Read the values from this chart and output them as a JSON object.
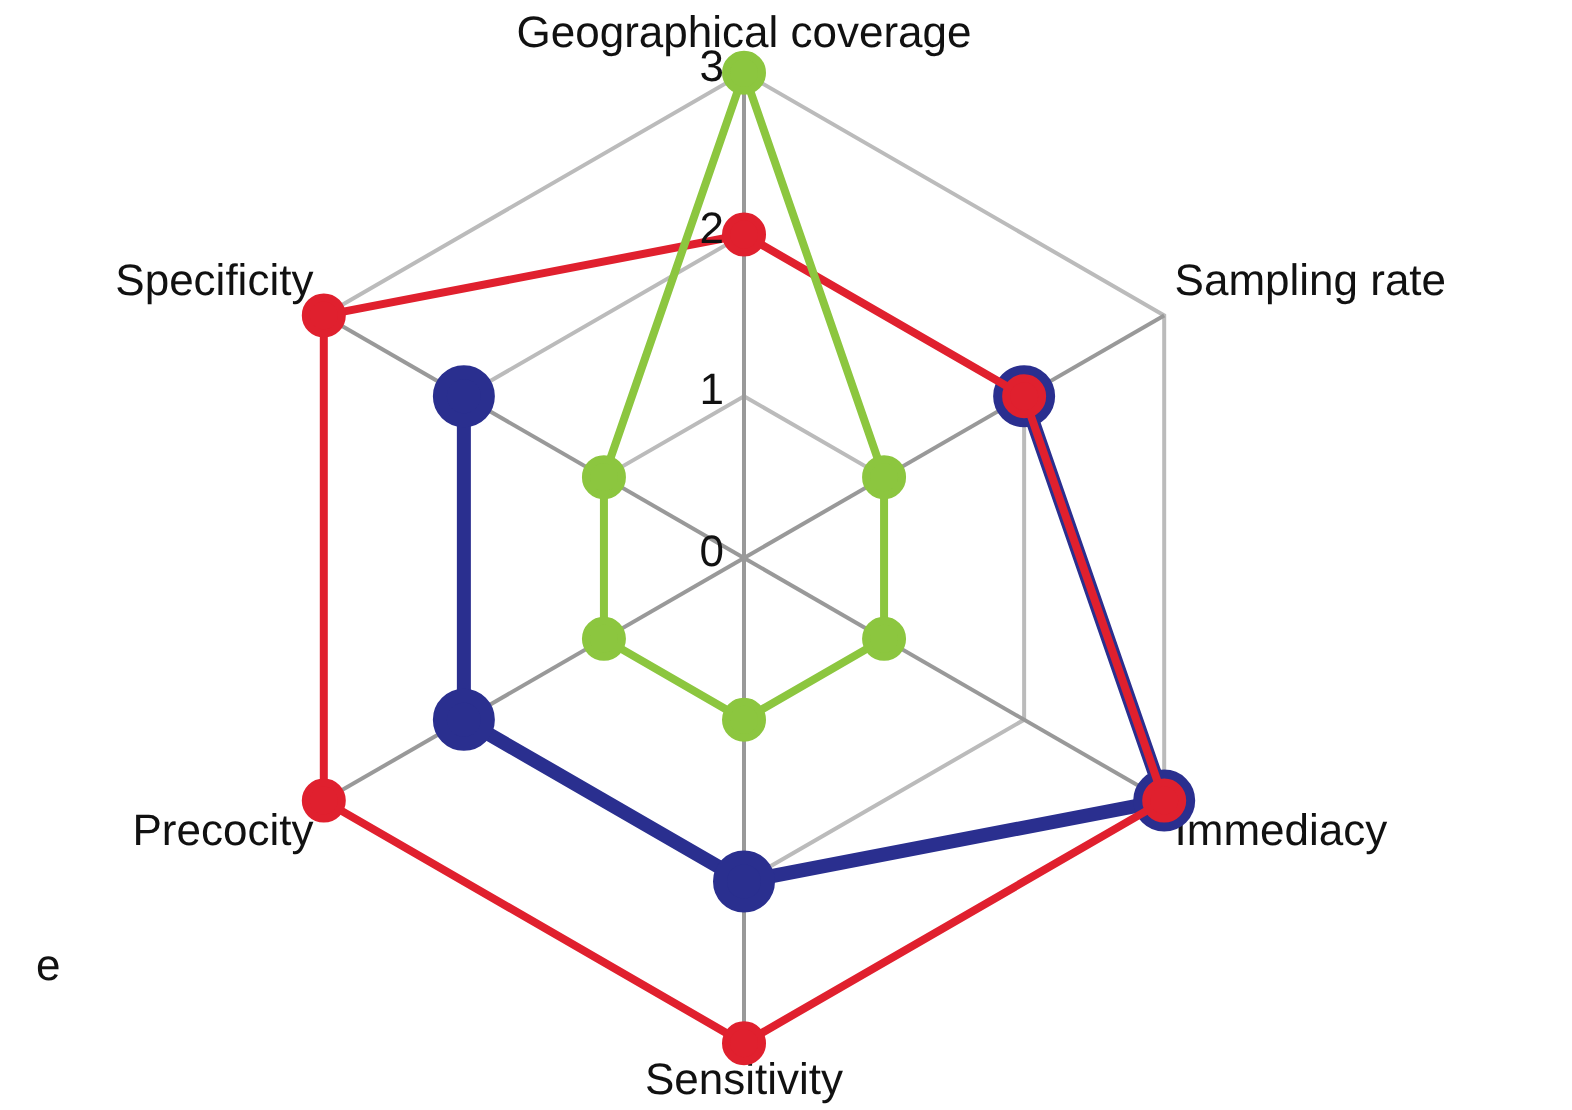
{
  "chart_data": {
    "type": "radar",
    "categories": [
      "Geographical coverage",
      "Sampling rate",
      "Immediacy",
      "Sensitivity",
      "Precocity",
      "Specificity"
    ],
    "series": [
      {
        "color": "#e0202e",
        "values": [
          2,
          2,
          3,
          3,
          3,
          3
        ]
      },
      {
        "color": "#2a2f8f",
        "values": [
          null,
          2,
          3,
          2,
          2,
          2
        ]
      },
      {
        "color": "#8cc63f",
        "values": [
          3,
          1,
          1,
          1,
          1,
          1
        ]
      }
    ],
    "ylim": [
      0,
      3
    ],
    "yticks": [
      0,
      1,
      2,
      3
    ],
    "grid": true,
    "legend": false,
    "marker": "circle",
    "line_style": "solid",
    "annotations": [
      "e"
    ]
  }
}
